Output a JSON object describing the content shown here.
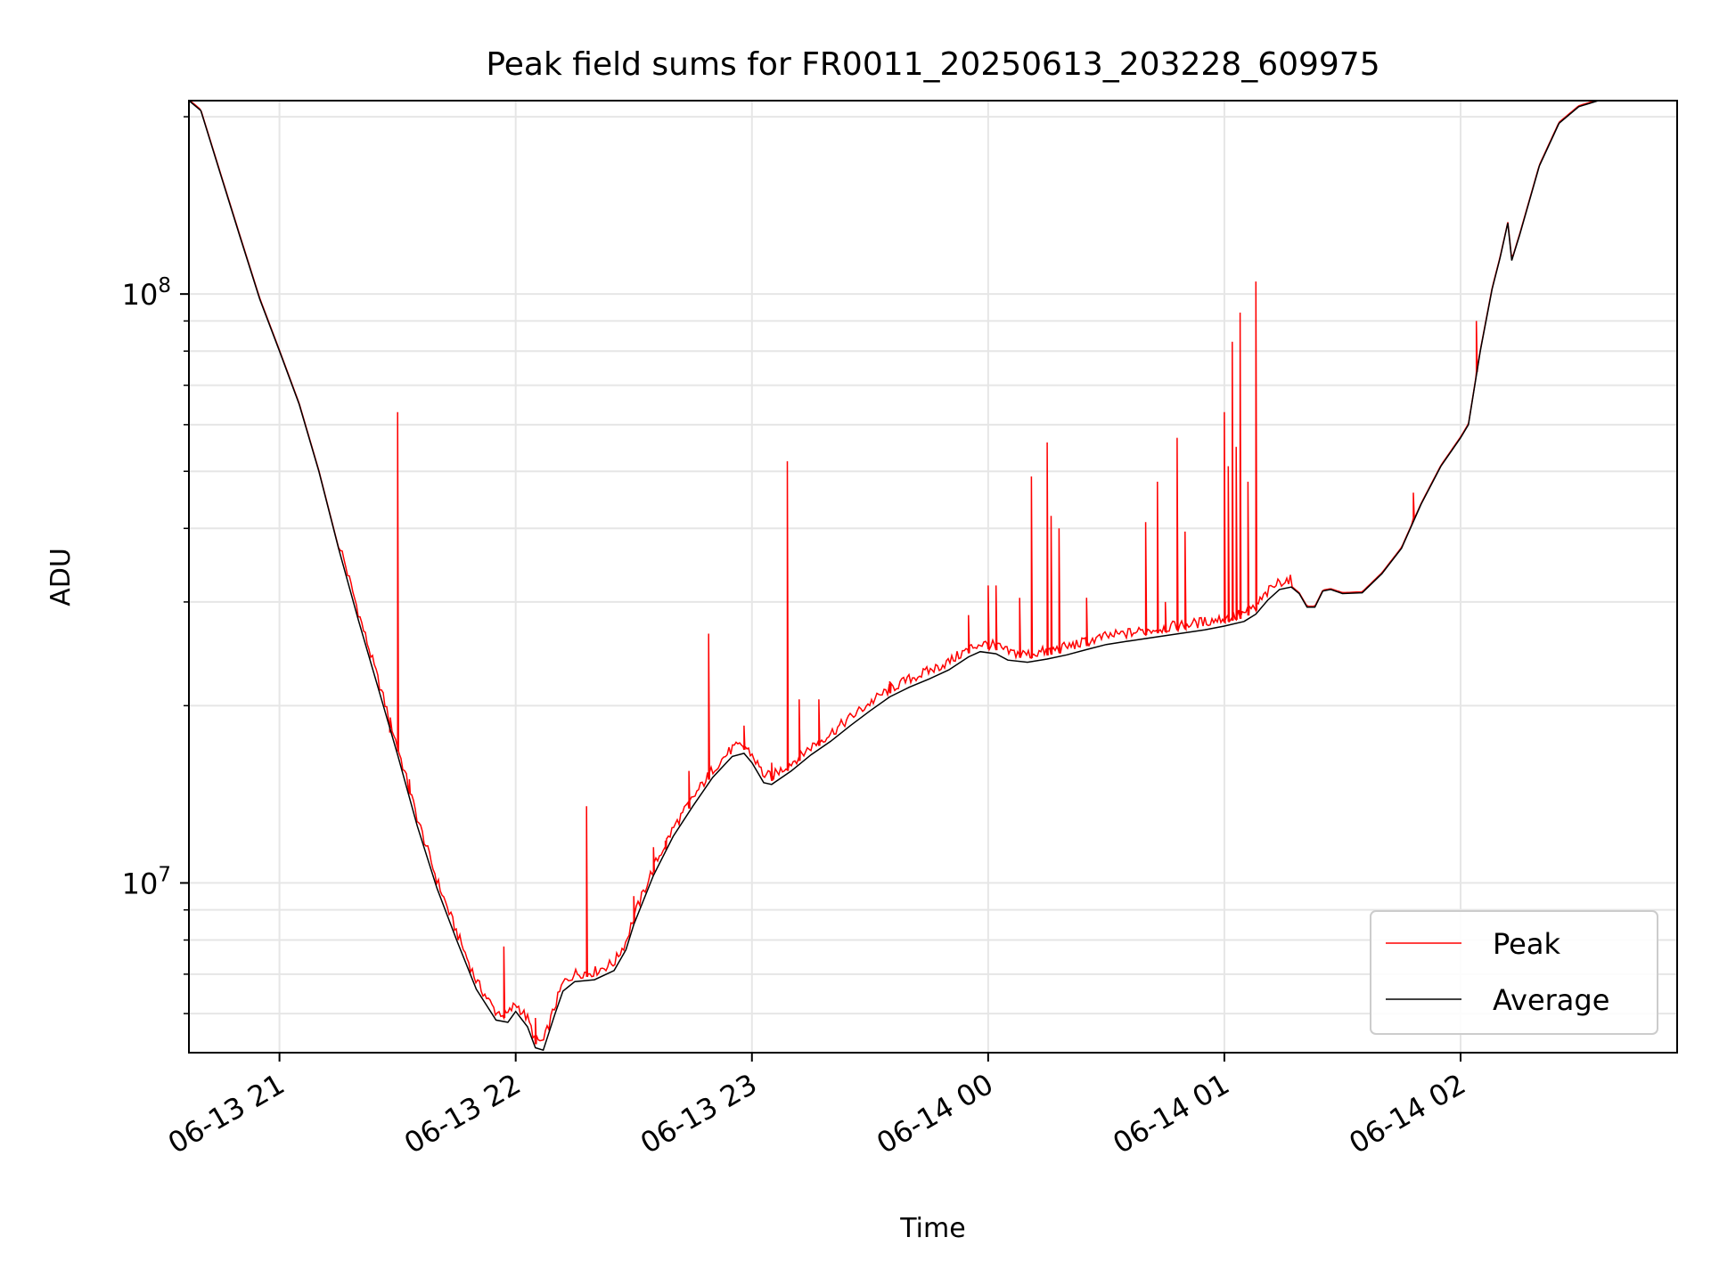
{
  "chart_data": {
    "type": "line",
    "title": "Peak field sums for FR0011_20250613_203228_609975",
    "xlabel": "Time",
    "ylabel": "ADU",
    "yscale": "log",
    "ylim": [
      5150000,
      213000000
    ],
    "xlim": [
      "2025-06-13T20:37",
      "2025-06-14T02:55"
    ],
    "grid": true,
    "legend_position": "lower-right",
    "x_ticks": [
      {
        "t": "2025-06-13T21:00",
        "label": "06-13 21"
      },
      {
        "t": "2025-06-13T22:00",
        "label": "06-13 22"
      },
      {
        "t": "2025-06-13T23:00",
        "label": "06-13 23"
      },
      {
        "t": "2025-06-14T00:00",
        "label": "06-14 00"
      },
      {
        "t": "2025-06-14T01:00",
        "label": "06-14 01"
      },
      {
        "t": "2025-06-14T02:00",
        "label": "06-14 02"
      }
    ],
    "y_ticks": [
      {
        "value": 10000000,
        "base": "10",
        "exp": "7"
      },
      {
        "value": 100000000,
        "base": "10",
        "exp": "8"
      }
    ],
    "series": [
      {
        "name": "Average",
        "color": "#000000",
        "points": [
          [
            "2025-06-13T20:37",
            213000000
          ],
          [
            "2025-06-13T20:40",
            205000000
          ],
          [
            "2025-06-13T20:45",
            160000000
          ],
          [
            "2025-06-13T20:50",
            125000000
          ],
          [
            "2025-06-13T20:55",
            98000000
          ],
          [
            "2025-06-13T21:00",
            80000000
          ],
          [
            "2025-06-13T21:05",
            65000000
          ],
          [
            "2025-06-13T21:10",
            50000000
          ],
          [
            "2025-06-13T21:15",
            37000000
          ],
          [
            "2025-06-13T21:20",
            28000000
          ],
          [
            "2025-06-13T21:25",
            21500000
          ],
          [
            "2025-06-13T21:30",
            16500000
          ],
          [
            "2025-06-13T21:35",
            12500000
          ],
          [
            "2025-06-13T21:40",
            9800000
          ],
          [
            "2025-06-13T21:45",
            8000000
          ],
          [
            "2025-06-13T21:50",
            6600000
          ],
          [
            "2025-06-13T21:55",
            5850000
          ],
          [
            "2025-06-13T21:58",
            5800000
          ],
          [
            "2025-06-13T22:00",
            6050000
          ],
          [
            "2025-06-13T22:03",
            5700000
          ],
          [
            "2025-06-13T22:05",
            5250000
          ],
          [
            "2025-06-13T22:07",
            5200000
          ],
          [
            "2025-06-13T22:10",
            6000000
          ],
          [
            "2025-06-13T22:12",
            6550000
          ],
          [
            "2025-06-13T22:15",
            6800000
          ],
          [
            "2025-06-13T22:20",
            6850000
          ],
          [
            "2025-06-13T22:25",
            7100000
          ],
          [
            "2025-06-13T22:28",
            7700000
          ],
          [
            "2025-06-13T22:30",
            8500000
          ],
          [
            "2025-06-13T22:35",
            10300000
          ],
          [
            "2025-06-13T22:40",
            12000000
          ],
          [
            "2025-06-13T22:45",
            13500000
          ],
          [
            "2025-06-13T22:50",
            15100000
          ],
          [
            "2025-06-13T22:55",
            16400000
          ],
          [
            "2025-06-13T22:58",
            16600000
          ],
          [
            "2025-06-13T23:00",
            16000000
          ],
          [
            "2025-06-13T23:03",
            14800000
          ],
          [
            "2025-06-13T23:05",
            14700000
          ],
          [
            "2025-06-13T23:10",
            15500000
          ],
          [
            "2025-06-13T23:15",
            16500000
          ],
          [
            "2025-06-13T23:20",
            17400000
          ],
          [
            "2025-06-13T23:25",
            18500000
          ],
          [
            "2025-06-13T23:30",
            19600000
          ],
          [
            "2025-06-13T23:35",
            20700000
          ],
          [
            "2025-06-13T23:40",
            21500000
          ],
          [
            "2025-06-13T23:45",
            22200000
          ],
          [
            "2025-06-13T23:50",
            23000000
          ],
          [
            "2025-06-13T23:55",
            24200000
          ],
          [
            "2025-06-13T23:58",
            24700000
          ],
          [
            "2025-06-14T00:02",
            24500000
          ],
          [
            "2025-06-14T00:05",
            23900000
          ],
          [
            "2025-06-14T00:10",
            23700000
          ],
          [
            "2025-06-14T00:15",
            24000000
          ],
          [
            "2025-06-14T00:20",
            24400000
          ],
          [
            "2025-06-14T00:25",
            24900000
          ],
          [
            "2025-06-14T00:30",
            25400000
          ],
          [
            "2025-06-14T00:35",
            25700000
          ],
          [
            "2025-06-14T00:40",
            26000000
          ],
          [
            "2025-06-14T00:45",
            26300000
          ],
          [
            "2025-06-14T00:50",
            26600000
          ],
          [
            "2025-06-14T00:55",
            26900000
          ],
          [
            "2025-06-14T01:00",
            27300000
          ],
          [
            "2025-06-14T01:05",
            27800000
          ],
          [
            "2025-06-14T01:08",
            28600000
          ],
          [
            "2025-06-14T01:11",
            30200000
          ],
          [
            "2025-06-14T01:14",
            31500000
          ],
          [
            "2025-06-14T01:17",
            31800000
          ],
          [
            "2025-06-14T01:19",
            31000000
          ],
          [
            "2025-06-14T01:21",
            29400000
          ],
          [
            "2025-06-14T01:23",
            29400000
          ],
          [
            "2025-06-14T01:25",
            31300000
          ],
          [
            "2025-06-14T01:27",
            31500000
          ],
          [
            "2025-06-14T01:30",
            31000000
          ],
          [
            "2025-06-14T01:35",
            31100000
          ],
          [
            "2025-06-14T01:40",
            33500000
          ],
          [
            "2025-06-14T01:45",
            37000000
          ],
          [
            "2025-06-14T01:50",
            44000000
          ],
          [
            "2025-06-14T01:55",
            51000000
          ],
          [
            "2025-06-14T02:00",
            57000000
          ],
          [
            "2025-06-14T02:02",
            60000000
          ],
          [
            "2025-06-14T02:05",
            80000000
          ],
          [
            "2025-06-14T02:08",
            102000000
          ],
          [
            "2025-06-14T02:10",
            115000000
          ],
          [
            "2025-06-14T02:12",
            132000000
          ],
          [
            "2025-06-14T02:13",
            114000000
          ],
          [
            "2025-06-14T02:15",
            126000000
          ],
          [
            "2025-06-14T02:20",
            165000000
          ],
          [
            "2025-06-14T02:25",
            195000000
          ],
          [
            "2025-06-14T02:30",
            208000000
          ],
          [
            "2025-06-14T02:35",
            213000000
          ]
        ]
      },
      {
        "name": "Peak",
        "color": "#ff0000",
        "spikes": [
          [
            "2025-06-13T21:28",
            18000000
          ],
          [
            "2025-06-13T21:30",
            63000000
          ],
          [
            "2025-06-13T21:33",
            15000000
          ],
          [
            "2025-06-13T21:57",
            7800000
          ],
          [
            "2025-06-13T22:05",
            5900000
          ],
          [
            "2025-06-13T22:18",
            13500000
          ],
          [
            "2025-06-13T22:30",
            9500000
          ],
          [
            "2025-06-13T22:35",
            11500000
          ],
          [
            "2025-06-13T22:38",
            11800000
          ],
          [
            "2025-06-13T22:44",
            15500000
          ],
          [
            "2025-06-13T22:49",
            26500000
          ],
          [
            "2025-06-13T22:58",
            18500000
          ],
          [
            "2025-06-13T23:05",
            16000000
          ],
          [
            "2025-06-13T23:09",
            52000000
          ],
          [
            "2025-06-13T23:12",
            20500000
          ],
          [
            "2025-06-13T23:17",
            20500000
          ],
          [
            "2025-06-13T23:35",
            22000000
          ],
          [
            "2025-06-13T23:55",
            28500000
          ],
          [
            "2025-06-14T00:00",
            32000000
          ],
          [
            "2025-06-14T00:02",
            32000000
          ],
          [
            "2025-06-14T00:08",
            30500000
          ],
          [
            "2025-06-14T00:11",
            49000000
          ],
          [
            "2025-06-14T00:15",
            56000000
          ],
          [
            "2025-06-14T00:16",
            42000000
          ],
          [
            "2025-06-14T00:18",
            40000000
          ],
          [
            "2025-06-14T00:25",
            30500000
          ],
          [
            "2025-06-14T00:40",
            41000000
          ],
          [
            "2025-06-14T00:43",
            48000000
          ],
          [
            "2025-06-14T00:45",
            30000000
          ],
          [
            "2025-06-14T00:48",
            57000000
          ],
          [
            "2025-06-14T00:50",
            39500000
          ],
          [
            "2025-06-14T01:00",
            63000000
          ],
          [
            "2025-06-14T01:01",
            51000000
          ],
          [
            "2025-06-14T01:02",
            83000000
          ],
          [
            "2025-06-14T01:03",
            55000000
          ],
          [
            "2025-06-14T01:04",
            93000000
          ],
          [
            "2025-06-14T01:06",
            48000000
          ],
          [
            "2025-06-14T01:08",
            105000000
          ],
          [
            "2025-06-14T01:48",
            46000000
          ],
          [
            "2025-06-14T02:04",
            90000000
          ]
        ]
      }
    ]
  }
}
